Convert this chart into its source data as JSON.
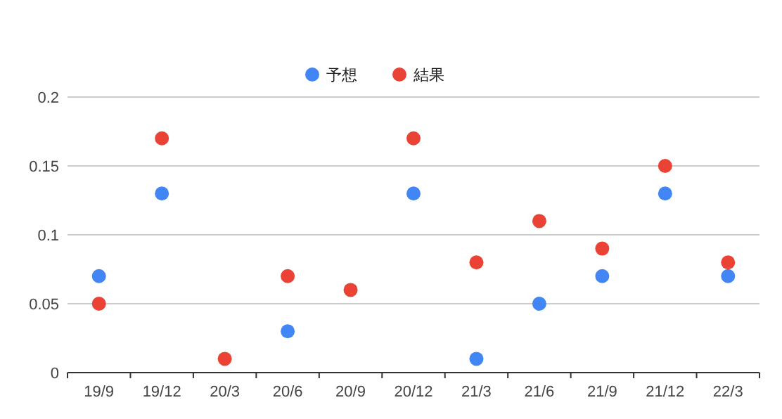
{
  "chart_data": {
    "type": "scatter",
    "categories": [
      "19/9",
      "19/12",
      "20/3",
      "20/6",
      "20/9",
      "20/12",
      "21/3",
      "21/6",
      "21/9",
      "21/12",
      "22/3"
    ],
    "series": [
      {
        "name": "予想",
        "color": "#4285f4",
        "values": [
          0.07,
          0.13,
          null,
          0.03,
          null,
          0.13,
          0.01,
          0.05,
          0.07,
          0.13,
          0.07
        ]
      },
      {
        "name": "結果",
        "color": "#ea4335",
        "values": [
          0.05,
          0.17,
          0.01,
          0.07,
          0.06,
          0.17,
          0.08,
          0.11,
          0.09,
          0.15,
          0.08
        ]
      }
    ],
    "ylim": [
      0,
      0.2
    ],
    "yticks": [
      0,
      0.05,
      0.1,
      0.15,
      0.2
    ],
    "grid": "y",
    "legend": "top",
    "marker": "circle"
  }
}
